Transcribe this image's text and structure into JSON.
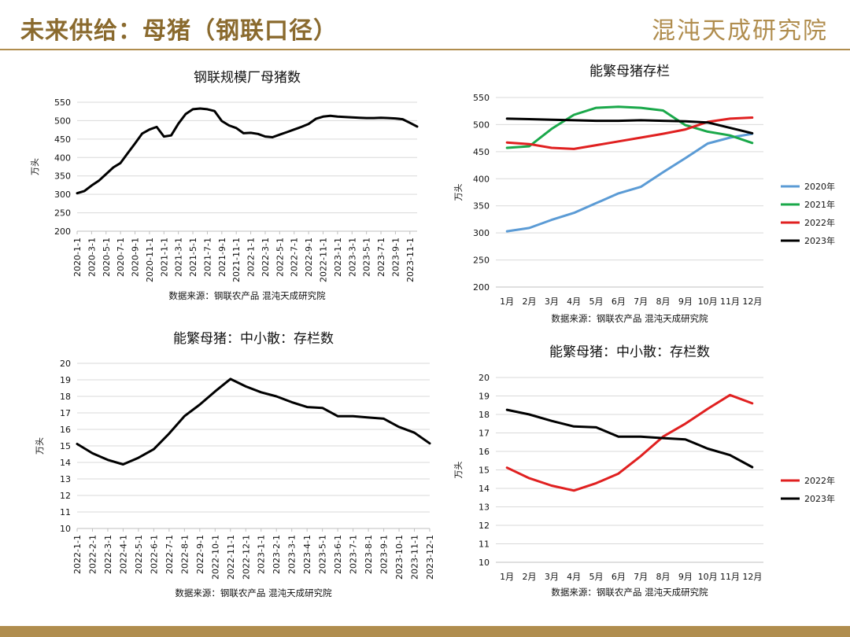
{
  "header": {
    "title": "未来供给：母猪（钢联口径）",
    "brand": "混沌天成研究院"
  },
  "colors": {
    "accent": "#b08d4e",
    "y2020": "#5b9bd5",
    "y2021": "#1aa84a",
    "y2022": "#e02020",
    "y2023": "#000000"
  },
  "chart_data": [
    {
      "id": "tl",
      "type": "line",
      "title": "钢联规模厂母猪数",
      "ylabel": "万头",
      "source": "数据来源：钢联农产品 混沌天成研究院",
      "ylim": [
        200,
        550
      ],
      "yticks": [
        200,
        250,
        300,
        350,
        400,
        450,
        500,
        550
      ],
      "grid": true,
      "x": [
        "2020-1-1",
        "2020-2-1",
        "2020-3-1",
        "2020-4-1",
        "2020-5-1",
        "2020-6-1",
        "2020-7-1",
        "2020-8-1",
        "2020-9-1",
        "2020-10-1",
        "2020-11-1",
        "2020-12-1",
        "2021-1-1",
        "2021-2-1",
        "2021-3-1",
        "2021-4-1",
        "2021-5-1",
        "2021-6-1",
        "2021-7-1",
        "2021-8-1",
        "2021-9-1",
        "2021-10-1",
        "2021-11-1",
        "2021-12-1",
        "2022-1-1",
        "2022-2-1",
        "2022-3-1",
        "2022-4-1",
        "2022-5-1",
        "2022-6-1",
        "2022-7-1",
        "2022-8-1",
        "2022-9-1",
        "2022-10-1",
        "2022-11-1",
        "2022-12-1",
        "2023-1-1",
        "2023-2-1",
        "2023-3-1",
        "2023-4-1",
        "2023-5-1",
        "2023-6-1",
        "2023-7-1",
        "2023-8-1",
        "2023-9-1",
        "2023-10-1",
        "2023-11-1",
        "2023-12-1"
      ],
      "xticks": [
        "2020-1-1",
        "2020-3-1",
        "2020-5-1",
        "2020-7-1",
        "2020-9-1",
        "2020-11-1",
        "2021-1-1",
        "2021-3-1",
        "2021-5-1",
        "2021-7-1",
        "2021-9-1",
        "2021-11-1",
        "2022-1-1",
        "2022-3-1",
        "2022-5-1",
        "2022-7-1",
        "2022-9-1",
        "2022-11-1",
        "2023-1-1",
        "2023-3-1",
        "2023-5-1",
        "2023-7-1",
        "2023-9-1",
        "2023-11-1"
      ],
      "series": [
        {
          "color": "#000000",
          "values": [
            303,
            309,
            324,
            337,
            355,
            373,
            385,
            412,
            438,
            465,
            476,
            483,
            457,
            460,
            492,
            518,
            531,
            533,
            531,
            526,
            499,
            487,
            480,
            466,
            467,
            464,
            457,
            455,
            462,
            469,
            476,
            483,
            491,
            505,
            511,
            513,
            511,
            510,
            509,
            508,
            507,
            507,
            508,
            507,
            506,
            504,
            494,
            484
          ]
        }
      ]
    },
    {
      "id": "tr",
      "type": "line",
      "title": "能繁母猪存栏",
      "ylabel": "万头",
      "source": "数据来源：钢联农产品 混沌天成研究院",
      "ylim": [
        200,
        550
      ],
      "yticks": [
        200,
        250,
        300,
        350,
        400,
        450,
        500,
        550
      ],
      "grid": true,
      "legend": "right",
      "categories": [
        "1月",
        "2月",
        "3月",
        "4月",
        "5月",
        "6月",
        "7月",
        "8月",
        "9月",
        "10月",
        "11月",
        "12月"
      ],
      "series": [
        {
          "name": "2020年",
          "color": "#5b9bd5",
          "values": [
            303,
            309,
            324,
            337,
            355,
            373,
            385,
            412,
            438,
            465,
            476,
            483
          ]
        },
        {
          "name": "2021年",
          "color": "#1aa84a",
          "values": [
            457,
            460,
            492,
            518,
            531,
            533,
            531,
            526,
            499,
            487,
            480,
            466
          ]
        },
        {
          "name": "2022年",
          "color": "#e02020",
          "values": [
            467,
            464,
            457,
            455,
            462,
            469,
            476,
            483,
            491,
            505,
            511,
            513
          ]
        },
        {
          "name": "2023年",
          "color": "#000000",
          "values": [
            511,
            510,
            509,
            508,
            507,
            507,
            508,
            507,
            506,
            504,
            494,
            484
          ]
        }
      ]
    },
    {
      "id": "bl",
      "type": "line",
      "title": "能繁母猪：中小散：存栏数",
      "ylabel": "万头",
      "source": "数据来源：钢联农产品 混沌天成研究院",
      "ylim": [
        10,
        20
      ],
      "yticks": [
        10,
        11,
        12,
        13,
        14,
        15,
        16,
        17,
        18,
        19,
        20
      ],
      "grid": true,
      "x": [
        "2022-1-1",
        "2022-2-1",
        "2022-3-1",
        "2022-4-1",
        "2022-5-1",
        "2022-6-1",
        "2022-7-1",
        "2022-8-1",
        "2022-9-1",
        "2022-10-1",
        "2022-11-1",
        "2022-12-1",
        "2023-1-1",
        "2023-2-1",
        "2023-3-1",
        "2023-4-1",
        "2023-5-1",
        "2023-6-1",
        "2023-7-1",
        "2023-8-1",
        "2023-9-1",
        "2023-10-1",
        "2023-11-1",
        "2023-12-1"
      ],
      "xticks": [
        "2022-1-1",
        "2022-2-1",
        "2022-3-1",
        "2022-4-1",
        "2022-5-1",
        "2022-6-1",
        "2022-7-1",
        "2022-8-1",
        "2022-9-1",
        "2022-10-1",
        "2022-11-1",
        "2022-12-1",
        "2023-1-1",
        "2023-2-1",
        "2023-3-1",
        "2023-4-1",
        "2023-5-1",
        "2023-6-1",
        "2023-7-1",
        "2023-8-1",
        "2023-9-1",
        "2023-10-1",
        "2023-11-1",
        "2023-12-1"
      ],
      "series": [
        {
          "color": "#000000",
          "values": [
            15.12,
            14.55,
            14.15,
            13.88,
            14.28,
            14.8,
            15.75,
            16.8,
            17.5,
            18.3,
            19.05,
            18.6,
            18.25,
            18.0,
            17.65,
            17.35,
            17.3,
            16.8,
            16.8,
            16.72,
            16.65,
            16.15,
            15.8,
            15.15
          ]
        }
      ]
    },
    {
      "id": "br",
      "type": "line",
      "title": "能繁母猪：中小散：存栏数",
      "ylabel": "万头",
      "source": "数据来源：钢联农产品 混沌天成研究院",
      "ylim": [
        10,
        20
      ],
      "yticks": [
        10,
        11,
        12,
        13,
        14,
        15,
        16,
        17,
        18,
        19,
        20
      ],
      "grid": true,
      "legend": "right",
      "categories": [
        "1月",
        "2月",
        "3月",
        "4月",
        "5月",
        "6月",
        "7月",
        "8月",
        "9月",
        "10月",
        "11月",
        "12月"
      ],
      "series": [
        {
          "name": "2022年",
          "color": "#e02020",
          "values": [
            15.12,
            14.55,
            14.15,
            13.88,
            14.28,
            14.8,
            15.75,
            16.8,
            17.5,
            18.3,
            19.05,
            18.6
          ]
        },
        {
          "name": "2023年",
          "color": "#000000",
          "values": [
            18.25,
            18.0,
            17.65,
            17.35,
            17.3,
            16.8,
            16.8,
            16.72,
            16.65,
            16.15,
            15.8,
            15.15
          ]
        }
      ]
    }
  ]
}
